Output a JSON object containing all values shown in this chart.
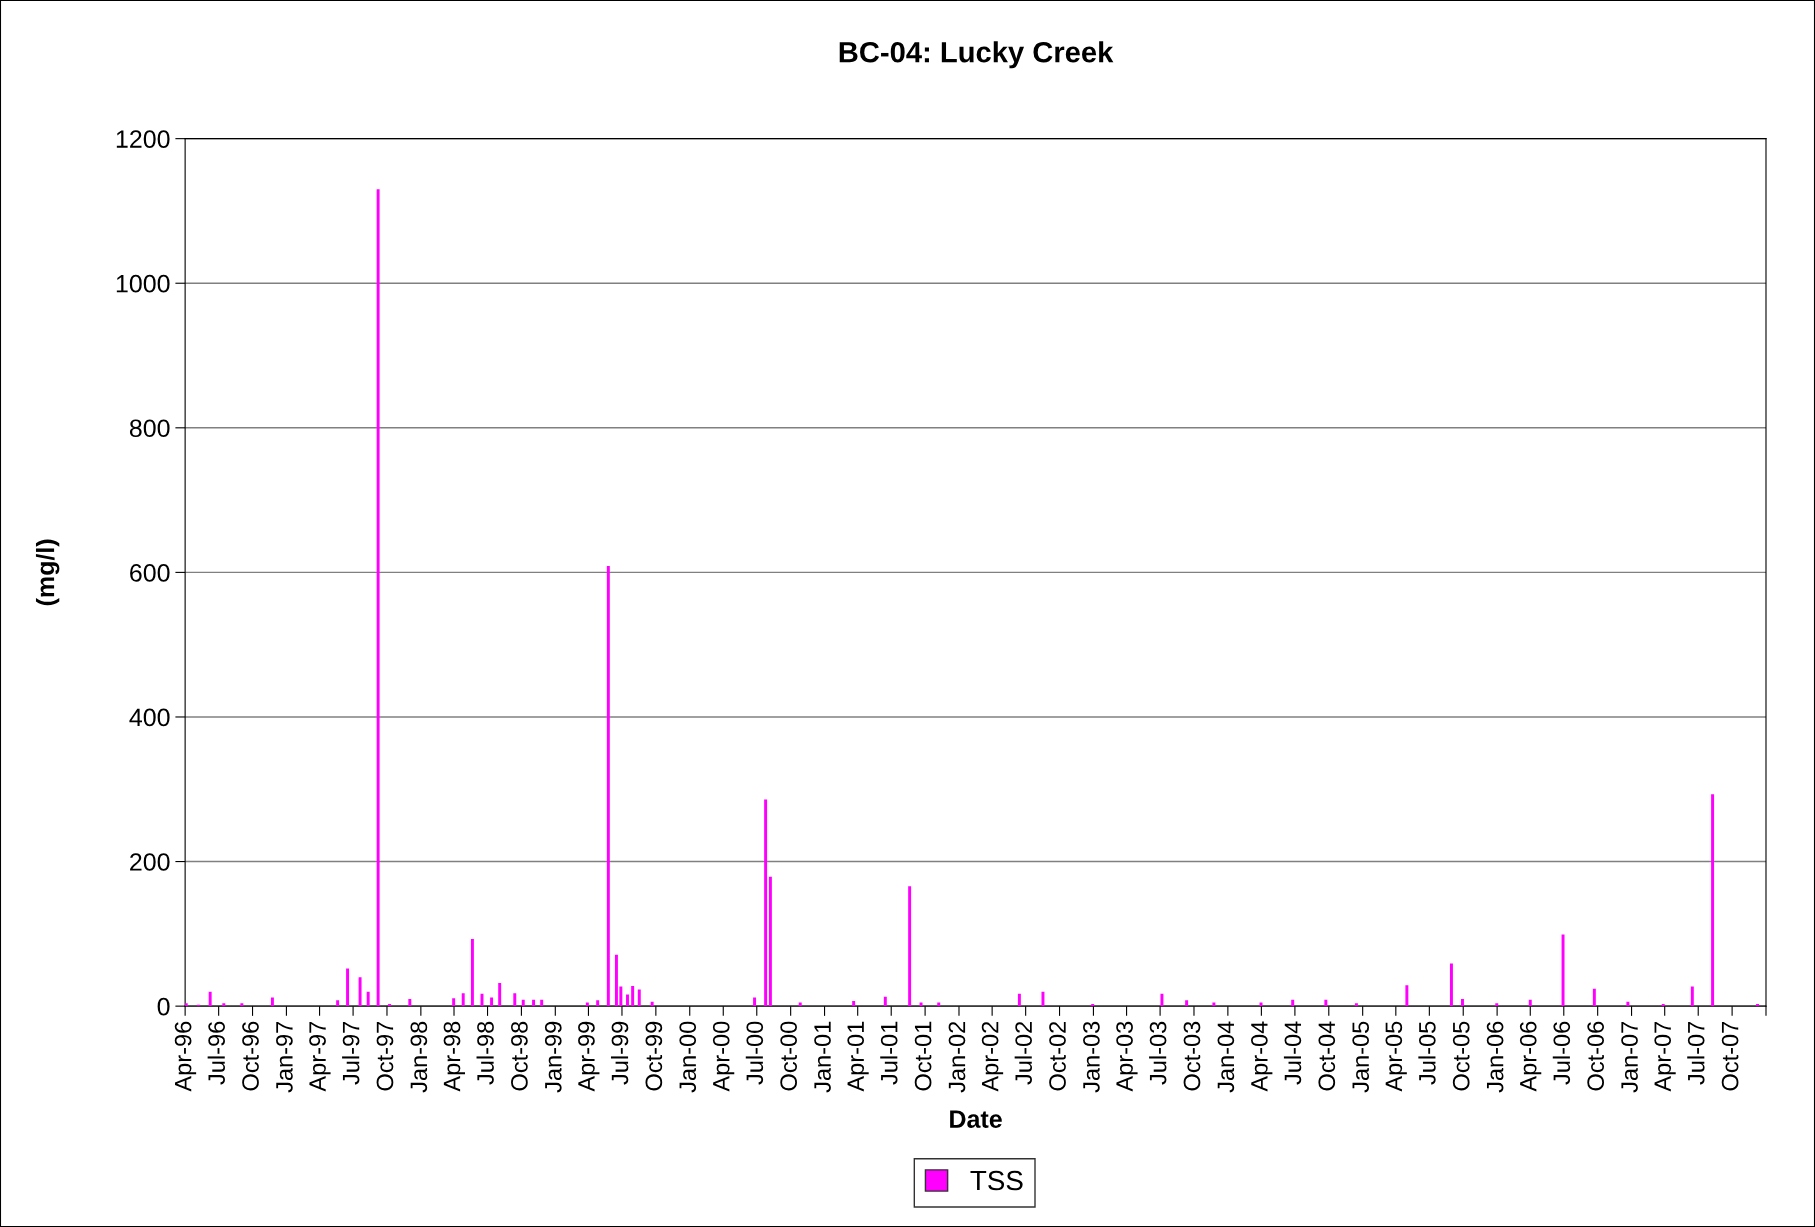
{
  "chart_data": {
    "type": "bar",
    "title": "BC-04: Lucky Creek",
    "xlabel": "Date",
    "ylabel": "(mg/l)",
    "x": [
      "1996-04-04",
      "1996-05-07",
      "1996-06-08",
      "1996-07-15",
      "1996-09-02",
      "1996-11-24",
      "1997-05-20",
      "1997-06-16",
      "1997-07-20",
      "1997-08-11",
      "1997-09-07",
      "1997-10-08",
      "1997-12-02",
      "1998-03-31",
      "1998-04-26",
      "1998-05-21",
      "1998-06-16",
      "1998-07-12",
      "1998-08-03",
      "1998-09-13",
      "1998-10-06",
      "1998-11-03",
      "1998-11-25",
      "1999-03-29",
      "1999-04-26",
      "1999-05-25",
      "1999-06-16",
      "1999-06-28",
      "1999-07-16",
      "1999-07-30",
      "1999-08-17",
      "1999-09-21",
      "2000-06-25",
      "2000-07-25",
      "2000-08-07",
      "2000-10-27",
      "2001-03-21",
      "2001-06-15",
      "2001-08-20",
      "2001-09-20",
      "2001-11-07",
      "2002-06-14",
      "2002-08-17",
      "2002-12-30",
      "2003-07-06",
      "2003-09-11",
      "2003-11-24",
      "2004-03-31",
      "2004-06-25",
      "2004-09-23",
      "2004-12-15",
      "2005-05-01",
      "2005-08-30",
      "2005-09-29",
      "2005-12-31",
      "2006-04-01",
      "2006-06-29",
      "2006-09-22",
      "2006-12-22",
      "2007-03-28",
      "2007-06-15",
      "2007-08-09",
      "2007-12-09"
    ],
    "series": [
      {
        "name": "TSS",
        "color": "#ff00ff",
        "values": [
          4,
          2,
          20,
          4,
          4,
          12,
          8,
          52,
          40,
          20,
          1130,
          3,
          10,
          11,
          18,
          93,
          17,
          12,
          32,
          18,
          9,
          9,
          9,
          5,
          8,
          609,
          71,
          27,
          16,
          28,
          23,
          6,
          12,
          286,
          179,
          5,
          7,
          13,
          166,
          5,
          5,
          17,
          20,
          3,
          17,
          8,
          5,
          5,
          9,
          9,
          4,
          29,
          59,
          10,
          4,
          9,
          99,
          24,
          6,
          3,
          27,
          293,
          3
        ]
      }
    ],
    "xlim": [
      "1996-04-01",
      "2008-01-01"
    ],
    "xticks": [
      {
        "value": "1996-04-01",
        "label": "Apr-96"
      },
      {
        "value": "1996-07-01",
        "label": "Jul-96"
      },
      {
        "value": "1996-10-01",
        "label": "Oct-96"
      },
      {
        "value": "1997-01-01",
        "label": "Jan-97"
      },
      {
        "value": "1997-04-01",
        "label": "Apr-97"
      },
      {
        "value": "1997-07-01",
        "label": "Jul-97"
      },
      {
        "value": "1997-10-01",
        "label": "Oct-97"
      },
      {
        "value": "1998-01-01",
        "label": "Jan-98"
      },
      {
        "value": "1998-04-01",
        "label": "Apr-98"
      },
      {
        "value": "1998-07-01",
        "label": "Jul-98"
      },
      {
        "value": "1998-10-01",
        "label": "Oct-98"
      },
      {
        "value": "1999-01-01",
        "label": "Jan-99"
      },
      {
        "value": "1999-04-01",
        "label": "Apr-99"
      },
      {
        "value": "1999-07-01",
        "label": "Jul-99"
      },
      {
        "value": "1999-10-01",
        "label": "Oct-99"
      },
      {
        "value": "2000-01-01",
        "label": "Jan-00"
      },
      {
        "value": "2000-04-01",
        "label": "Apr-00"
      },
      {
        "value": "2000-07-01",
        "label": "Jul-00"
      },
      {
        "value": "2000-10-01",
        "label": "Oct-00"
      },
      {
        "value": "2001-01-01",
        "label": "Jan-01"
      },
      {
        "value": "2001-04-01",
        "label": "Apr-01"
      },
      {
        "value": "2001-07-01",
        "label": "Jul-01"
      },
      {
        "value": "2001-10-01",
        "label": "Oct-01"
      },
      {
        "value": "2002-01-01",
        "label": "Jan-02"
      },
      {
        "value": "2002-04-01",
        "label": "Apr-02"
      },
      {
        "value": "2002-07-01",
        "label": "Jul-02"
      },
      {
        "value": "2002-10-01",
        "label": "Oct-02"
      },
      {
        "value": "2003-01-01",
        "label": "Jan-03"
      },
      {
        "value": "2003-04-01",
        "label": "Apr-03"
      },
      {
        "value": "2003-07-01",
        "label": "Jul-03"
      },
      {
        "value": "2003-10-01",
        "label": "Oct-03"
      },
      {
        "value": "2004-01-01",
        "label": "Jan-04"
      },
      {
        "value": "2004-04-01",
        "label": "Apr-04"
      },
      {
        "value": "2004-07-01",
        "label": "Jul-04"
      },
      {
        "value": "2004-10-01",
        "label": "Oct-04"
      },
      {
        "value": "2005-01-01",
        "label": "Jan-05"
      },
      {
        "value": "2005-04-01",
        "label": "Apr-05"
      },
      {
        "value": "2005-07-01",
        "label": "Jul-05"
      },
      {
        "value": "2005-10-01",
        "label": "Oct-05"
      },
      {
        "value": "2006-01-01",
        "label": "Jan-06"
      },
      {
        "value": "2006-04-01",
        "label": "Apr-06"
      },
      {
        "value": "2006-07-01",
        "label": "Jul-06"
      },
      {
        "value": "2006-10-01",
        "label": "Oct-06"
      },
      {
        "value": "2007-01-01",
        "label": "Jan-07"
      },
      {
        "value": "2007-04-01",
        "label": "Apr-07"
      },
      {
        "value": "2007-07-01",
        "label": "Jul-07"
      },
      {
        "value": "2007-10-01",
        "label": "Oct-07"
      },
      {
        "value": "2008-01-01",
        "label": null
      }
    ],
    "ylim": [
      0,
      1200
    ],
    "yticks": [
      0,
      200,
      400,
      600,
      800,
      1000,
      1200
    ],
    "grid": "y",
    "legend": "bottom"
  }
}
